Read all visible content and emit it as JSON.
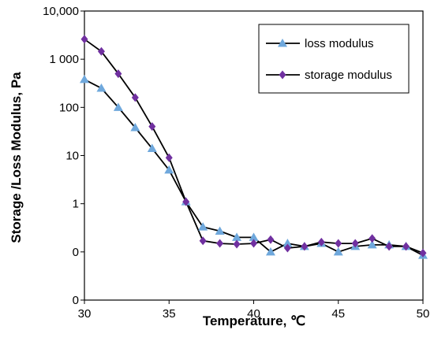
{
  "chart_data": {
    "type": "line",
    "title": "",
    "xlabel": "Temperature, ℃",
    "ylabel": "Storage /Loss Modulus,  Pa",
    "xlim": [
      30,
      50
    ],
    "xticks": [
      "30",
      "35",
      "40",
      "45",
      "50"
    ],
    "yticks": [
      "0",
      "0",
      "1",
      "10",
      "100",
      "1 000",
      "10,000"
    ],
    "y_scale": "log-like",
    "grid": false,
    "legend_position": "top-right",
    "series": [
      {
        "name": "loss modulus",
        "marker": "triangle",
        "color": "#6fa8dc",
        "x": [
          30,
          31,
          32,
          33,
          34,
          35,
          36,
          37,
          38,
          39,
          40,
          41,
          42,
          43,
          44,
          45,
          46,
          47,
          48,
          49,
          50
        ],
        "y": [
          380,
          250,
          100,
          38,
          14,
          5,
          1.1,
          0.33,
          0.27,
          0.2,
          0.2,
          0.1,
          0.15,
          0.13,
          0.15,
          0.1,
          0.13,
          0.14,
          0.14,
          0.13,
          0.085
        ]
      },
      {
        "name": "storage modulus",
        "marker": "diamond",
        "color": "#7030a0",
        "x": [
          30,
          31,
          32,
          33,
          34,
          35,
          36,
          37,
          38,
          39,
          40,
          41,
          42,
          43,
          44,
          45,
          46,
          47,
          48,
          49,
          50
        ],
        "y": [
          2600,
          1450,
          500,
          160,
          40,
          9,
          1.1,
          0.17,
          0.15,
          0.145,
          0.15,
          0.18,
          0.12,
          0.13,
          0.16,
          0.15,
          0.15,
          0.19,
          0.13,
          0.13,
          0.095
        ]
      }
    ]
  }
}
